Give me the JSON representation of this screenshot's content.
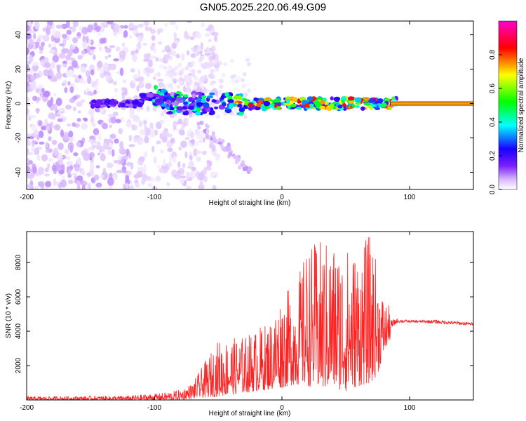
{
  "title": "GN05.2025.220.06.49.G09",
  "chart_data": [
    {
      "type": "heatmap",
      "title": "GN05.2025.220.06.49.G09",
      "xlabel": "Height of straight line (km)",
      "ylabel": "Frequency (Hz)",
      "xlim": [
        -200,
        150
      ],
      "ylim": [
        -50,
        48
      ],
      "x_ticks": [
        "-200",
        "-100",
        "0",
        "100"
      ],
      "y_ticks": [
        "-40",
        "-20",
        "0",
        "20",
        "40"
      ],
      "grid": false,
      "colorbar": {
        "label": "Normalized spectral amplitude",
        "range": [
          0,
          1
        ],
        "ticks": [
          "0.0",
          "0.2",
          "0.4",
          "0.6",
          "0.8"
        ],
        "colormap": [
          "#ffffff",
          "#d8b8ff",
          "#7b1fff",
          "#1a00ff",
          "#00ffff",
          "#00ff00",
          "#ffff00",
          "#ff0000",
          "#ff00cc"
        ]
      },
      "features": {
        "noise_region_x": [
          -200,
          -70
        ],
        "signal_start_x": -150,
        "steady_line_start_x": 90,
        "center_frequency_hz": 0,
        "descending_branch": {
          "x": [
            -65,
            -45,
            -25
          ],
          "y": [
            -12,
            -25,
            -40
          ]
        }
      }
    },
    {
      "type": "line",
      "xlabel": "Height of straight line (km)",
      "ylabel": "SNR (10 * v/v)",
      "xlim": [
        -200,
        150
      ],
      "ylim": [
        0,
        9800
      ],
      "x_ticks": [
        "-200",
        "-100",
        "0",
        "100"
      ],
      "y_ticks": [
        "2000",
        "4000",
        "6000",
        "8000"
      ],
      "grid": false,
      "series": [
        {
          "color": "#ff2020",
          "envelope": {
            "x": [
              -200,
              -120,
              -95,
              -80,
              -70,
              -50,
              -30,
              -10,
              0,
              10,
              20,
              30,
              40,
              50,
              60,
              70,
              75,
              80,
              90,
              100,
              120,
              150
            ],
            "low": [
              0,
              0,
              0,
              0,
              100,
              200,
              400,
              600,
              700,
              900,
              800,
              600,
              700,
              500,
              800,
              1000,
              1500,
              2800,
              4300,
              4400,
              4300,
              4200
            ],
            "high": [
              200,
              250,
              400,
              600,
              1000,
              3500,
              3700,
              4600,
              6300,
              6600,
              9000,
              9300,
              9300,
              9000,
              8800,
              9800,
              7600,
              5800,
              5000,
              4800,
              4900,
              4700
            ]
          }
        }
      ]
    }
  ]
}
